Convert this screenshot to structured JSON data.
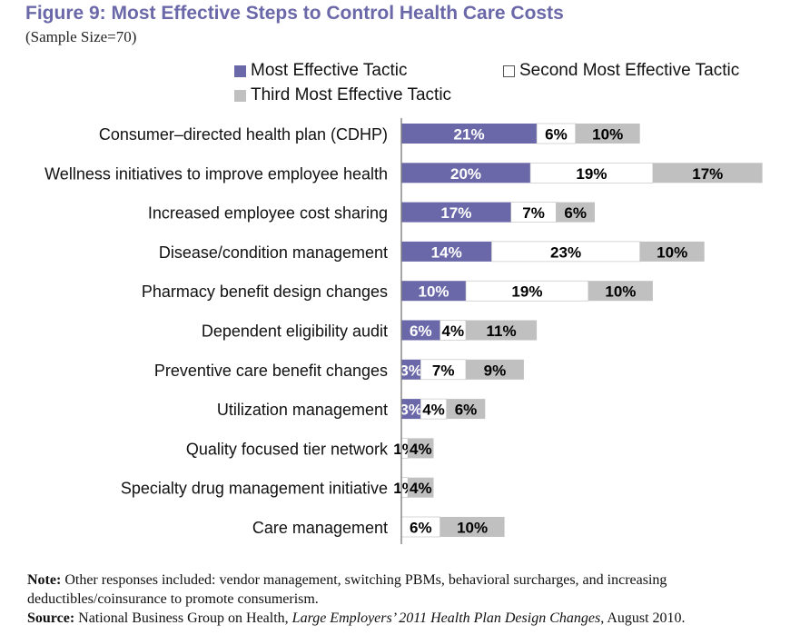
{
  "title": "Figure 9: Most Effective Steps to Control Health Care Costs",
  "subtitle": "(Sample Size=70)",
  "colors": {
    "title": "#6a68a8",
    "most": "#6a68a8",
    "second": "#ffffff",
    "third": "#c0c0c0",
    "axis": "#808080"
  },
  "chart_data": {
    "type": "bar",
    "orientation": "horizontal",
    "stacked": true,
    "xlim": [
      0,
      60
    ],
    "grid": false,
    "legend_position": "top",
    "categories": [
      "Consumer–directed health plan (CDHP)",
      "Wellness initiatives to improve employee health",
      "Increased employee cost sharing",
      "Disease/condition management",
      "Pharmacy benefit design changes",
      "Dependent eligibility audit",
      "Preventive care benefit changes",
      "Utilization management",
      "Quality focused tier network",
      "Specialty drug management initiative",
      "Care management"
    ],
    "series": [
      {
        "name": "Most Effective Tactic",
        "values": [
          21,
          20,
          17,
          14,
          10,
          6,
          3,
          3,
          0,
          0,
          0
        ],
        "labels": [
          "21%",
          "20%",
          "17%",
          "14%",
          "10%",
          "6%",
          "3%",
          "3%",
          "",
          "",
          ""
        ]
      },
      {
        "name": "Second Most Effective Tactic",
        "values": [
          6,
          19,
          7,
          23,
          19,
          4,
          7,
          4,
          1,
          1,
          6
        ],
        "labels": [
          "6%",
          "19%",
          "7%",
          "23%",
          "19%",
          "4%",
          "7%",
          "4%",
          "1%",
          "1%",
          "6%"
        ]
      },
      {
        "name": "Third Most Effective Tactic",
        "values": [
          10,
          17,
          6,
          10,
          10,
          11,
          9,
          6,
          4,
          4,
          10
        ],
        "labels": [
          "10%",
          "17%",
          "6%",
          "10%",
          "10%",
          "11%",
          "9%",
          "6%",
          "4%",
          "4%",
          "10%"
        ]
      }
    ]
  },
  "note": {
    "label": "Note:",
    "text": " Other responses included: vendor management, switching PBMs, behavioral surcharges, and increasing deductibles/coinsurance to promote consumerism."
  },
  "source": {
    "label": "Source:",
    "text_before": " National Business Group on Health, ",
    "italic": "Large Employers’ 2011 Health Plan Design Changes",
    "text_after": ", August 2010."
  }
}
